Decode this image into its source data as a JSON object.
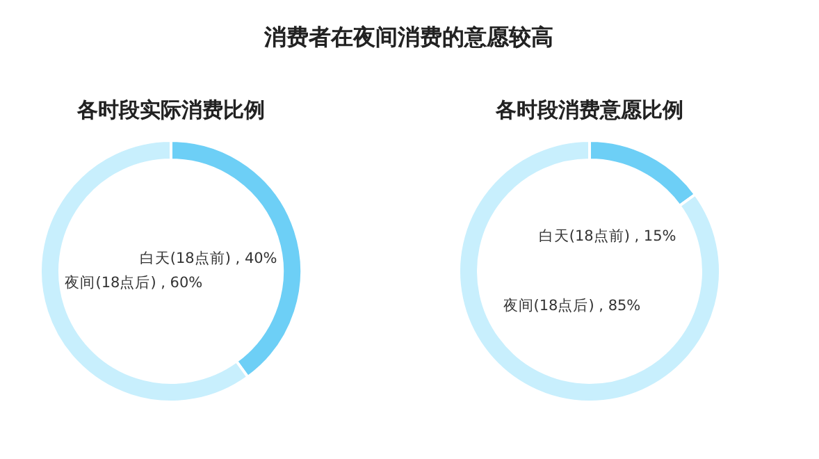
{
  "chart_data": [
    {
      "type": "donut",
      "title": "各时段实际消费比例",
      "annotations": [
        "消费者在夜间消费的意愿较高"
      ],
      "categories": [
        "白天(18点前)",
        "夜间(18点后)"
      ],
      "values": [
        40,
        60
      ],
      "value_labels": [
        "40%",
        "60%"
      ],
      "colors": [
        "#6dcff6",
        "#c8effd"
      ]
    },
    {
      "type": "donut",
      "title": "各时段消费意愿比例",
      "categories": [
        "白天(18点前)",
        "夜间(18点后)"
      ],
      "values": [
        15,
        85
      ],
      "value_labels": [
        "15%",
        "85%"
      ],
      "colors": [
        "#6dcff6",
        "#c8effd"
      ]
    }
  ]
}
